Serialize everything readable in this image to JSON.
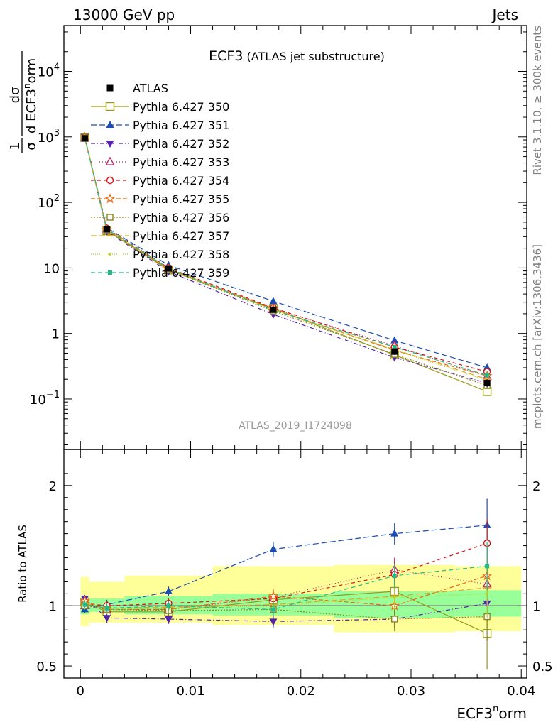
{
  "header": {
    "left": "13000 GeV pp",
    "right": "Jets"
  },
  "side_labels": {
    "rivet": "Rivet 3.1.10, ≥ 300k events",
    "mcplots": "mcplots.cern.ch [arXiv:1306.3436]"
  },
  "chart_data": {
    "type": "line",
    "title_main": "ECF3",
    "title_sub": "(ATLAS jet substructure)",
    "analysis_id": "ATLAS_2019_I1724098",
    "xlabel": "ECF3",
    "xlabel_sup": "n",
    "xlabel_suffix": "orm",
    "xlim": [
      -0.0015,
      0.0405
    ],
    "x_ticks": [
      0,
      0.01,
      0.02,
      0.03,
      0.04
    ],
    "x_tick_labels": [
      "0",
      "0.01",
      "0.02",
      "0.03",
      "0.04"
    ],
    "main_yscale": "log",
    "main_ylim": [
      0.017,
      50000
    ],
    "main_y_ticks": [
      {
        "value": 0.1,
        "base": "10",
        "exp": "−1"
      },
      {
        "value": 1,
        "base": "1",
        "exp": ""
      },
      {
        "value": 10,
        "base": "10",
        "exp": ""
      },
      {
        "value": 100,
        "base": "10",
        "exp": "2"
      },
      {
        "value": 1000,
        "base": "10",
        "exp": "3"
      },
      {
        "value": 10000,
        "base": "10",
        "exp": "4"
      }
    ],
    "main_ylabel": {
      "frac_num": "1",
      "frac_den": "σ",
      "d_num": "dσ",
      "d_den": "d ECF3",
      "d_den_sup": "n",
      "d_den_suffix": "orm"
    },
    "ratio_ylabel": "Ratio to ATLAS",
    "ratio_ylim": [
      0.4,
      2.3
    ],
    "ratio_y_ticks": [
      0.5,
      1,
      2
    ],
    "ratio_y_tick_labels": [
      "0.5",
      "1",
      "2"
    ],
    "x_bins": [
      0,
      0.0008,
      0.004,
      0.012,
      0.023,
      0.034,
      0.04
    ],
    "x_centers": [
      0.0004,
      0.0024,
      0.008,
      0.0175,
      0.0285,
      0.0369
    ],
    "data": {
      "name": "ATLAS",
      "color": "#000000",
      "values": [
        950,
        39,
        9.8,
        2.3,
        0.53,
        0.175
      ],
      "errors": [
        50,
        2.5,
        0.6,
        0.2,
        0.06,
        0.025
      ]
    },
    "bands": {
      "inner_color": "#99ff99",
      "outer_color": "#ffff99",
      "inner": [
        [
          0.93,
          1.07
        ],
        [
          0.95,
          1.06
        ],
        [
          0.93,
          1.08
        ],
        [
          0.92,
          1.1
        ],
        [
          0.9,
          1.12
        ],
        [
          0.91,
          1.13
        ]
      ],
      "outer": [
        [
          0.83,
          1.24
        ],
        [
          0.86,
          1.2
        ],
        [
          0.86,
          1.25
        ],
        [
          0.84,
          1.33
        ],
        [
          0.78,
          1.34
        ],
        [
          0.79,
          1.33
        ]
      ]
    },
    "series": [
      {
        "name": "Pythia 6.427 350",
        "color": "#99991a",
        "marker": "open-square",
        "dash": "",
        "values": [
          980,
          37,
          9.3,
          2.4,
          0.47,
          0.13
        ],
        "ratio": [
          1.03,
          0.95,
          0.95,
          1.05,
          1.12,
          0.77
        ],
        "ratio_err": [
          0.03,
          0.05,
          0.05,
          0.08,
          0.15,
          0.3
        ]
      },
      {
        "name": "Pythia 6.427 351",
        "color": "#1a4db3",
        "marker": "filled-triangle-up",
        "dash": "8,4",
        "values": [
          940,
          41,
          11,
          3.1,
          0.78,
          0.3
        ],
        "ratio": [
          0.97,
          1.01,
          1.12,
          1.47,
          1.6,
          1.67
        ],
        "ratio_err": [
          0.03,
          0.04,
          0.04,
          0.06,
          0.09,
          0.22
        ]
      },
      {
        "name": "Pythia 6.427 352",
        "color": "#5522aa",
        "marker": "filled-triangle-down",
        "dash": "6,3,1,3",
        "values": [
          1000,
          36,
          8.8,
          1.95,
          0.43,
          0.175
        ],
        "ratio": [
          1.06,
          0.9,
          0.89,
          0.87,
          0.89,
          1.02
        ],
        "ratio_err": [
          0.03,
          0.04,
          0.04,
          0.05,
          0.07,
          0.15
        ]
      },
      {
        "name": "Pythia 6.427 353",
        "color": "#bb2266",
        "marker": "open-triangle-up",
        "dash": "1,3",
        "values": [
          960,
          39,
          9.6,
          2.4,
          0.65,
          0.22
        ],
        "ratio": [
          1.0,
          0.97,
          0.97,
          1.07,
          1.3,
          1.18
        ],
        "ratio_err": [
          0.03,
          0.04,
          0.04,
          0.06,
          0.1,
          0.2
        ]
      },
      {
        "name": "Pythia 6.427 354",
        "color": "#dd1111",
        "marker": "open-circle",
        "dash": "5,4",
        "values": [
          975,
          40,
          10,
          2.45,
          0.62,
          0.26
        ],
        "ratio": [
          1.02,
          1.0,
          1.02,
          1.06,
          1.26,
          1.52
        ],
        "ratio_err": [
          0.03,
          0.04,
          0.04,
          0.06,
          0.1,
          0.2
        ]
      },
      {
        "name": "Pythia 6.427 355",
        "color": "#ee6611",
        "marker": "open-star",
        "dash": "6,3",
        "values": [
          990,
          38,
          9.5,
          2.35,
          0.55,
          0.225
        ],
        "ratio": [
          1.04,
          0.97,
          0.97,
          1.08,
          1.0,
          1.25
        ],
        "ratio_err": [
          0.03,
          0.04,
          0.04,
          0.06,
          0.1,
          0.2
        ]
      },
      {
        "name": "Pythia 6.427 356",
        "color": "#88881a",
        "marker": "open-square-small",
        "dash": "2,2",
        "values": [
          965,
          38,
          9.4,
          2.2,
          0.48,
          0.16
        ],
        "ratio": [
          1.0,
          0.97,
          0.96,
          0.97,
          0.89,
          0.91
        ],
        "ratio_err": [
          0.03,
          0.04,
          0.04,
          0.06,
          0.1,
          0.2
        ]
      },
      {
        "name": "Pythia 6.427 357",
        "color": "#ddaa22",
        "marker": "dash",
        "dash": "8,4",
        "values": [
          985,
          39.5,
          9.7,
          2.3,
          0.57,
          0.2
        ],
        "ratio": [
          1.02,
          0.98,
          0.99,
          1.01,
          1.08,
          1.15
        ],
        "ratio_err": [
          0.03,
          0.04,
          0.04,
          0.06,
          0.1,
          0.2
        ]
      },
      {
        "name": "Pythia 6.427 358",
        "color": "#bbcc22",
        "marker": "dot",
        "dash": "1,2",
        "values": [
          955,
          38.5,
          9.6,
          2.3,
          0.56,
          0.19
        ],
        "ratio": [
          1.0,
          0.97,
          0.98,
          1.0,
          1.07,
          1.1
        ],
        "ratio_err": [
          0.03,
          0.04,
          0.04,
          0.06,
          0.1,
          0.2
        ]
      },
      {
        "name": "Pythia 6.427 359",
        "color": "#22bb88",
        "marker": "filled-square-small",
        "dash": "6,4",
        "values": [
          970,
          39,
          9.9,
          2.25,
          0.62,
          0.23
        ],
        "ratio": [
          1.01,
          0.98,
          1.0,
          0.97,
          1.25,
          1.33
        ],
        "ratio_err": [
          0.03,
          0.04,
          0.04,
          0.06,
          0.1,
          0.2
        ]
      }
    ]
  }
}
